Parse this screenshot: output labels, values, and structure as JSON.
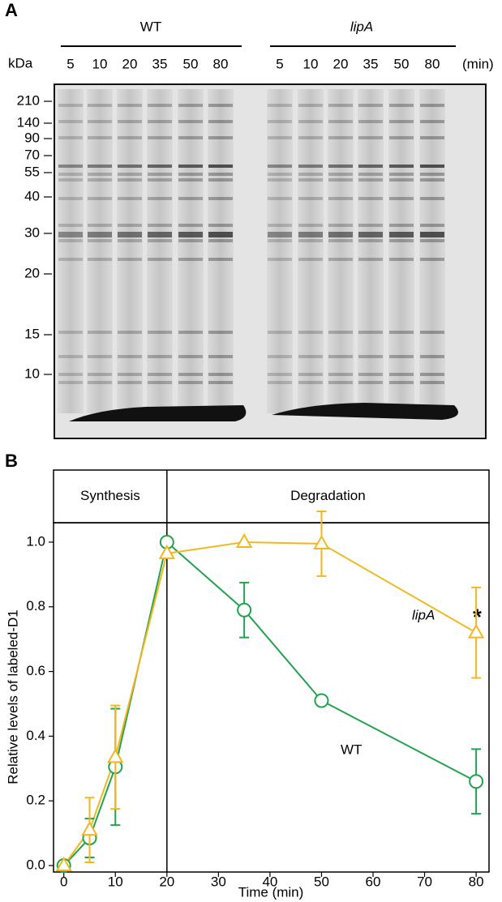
{
  "panel_a": {
    "label": "A",
    "groups": [
      "WT",
      "lipA"
    ],
    "size_unit": "kDa",
    "time_unit": "(min)",
    "wt_times": [
      5,
      10,
      20,
      35,
      50,
      80
    ],
    "lipa_times": [
      5,
      10,
      20,
      35,
      50,
      80
    ],
    "markers": [
      210,
      140,
      90,
      70,
      55,
      40,
      30,
      20,
      15,
      10
    ]
  },
  "chart_data": {
    "type": "line",
    "panel_label": "B",
    "phases": [
      "Synthesis",
      "Degradation"
    ],
    "phase_boundary": 20,
    "xlabel": "Time (min)",
    "ylabel": "Relative levels of labeled-D1",
    "x": [
      0,
      5,
      10,
      20,
      35,
      50,
      80
    ],
    "series": [
      {
        "name": "WT",
        "color": "#23a24d",
        "marker": "circle",
        "values": [
          0,
          0.085,
          0.305,
          1.0,
          0.79,
          0.51,
          0.26
        ],
        "errors": [
          0,
          0.06,
          0.18,
          0,
          0.085,
          0,
          0.1
        ]
      },
      {
        "name": "lipA",
        "color": "#f2b71f",
        "marker": "triangle",
        "values": [
          0,
          0.11,
          0.335,
          0.965,
          1.0,
          0.995,
          0.72
        ],
        "errors": [
          0,
          0.1,
          0.16,
          0,
          0,
          0.1,
          0.14
        ]
      }
    ],
    "significance": "*",
    "xlim": [
      -2,
      82.5
    ],
    "ylim": [
      -0.02,
      1.06
    ],
    "xticks": [
      0,
      10,
      20,
      30,
      40,
      50,
      60,
      70,
      80
    ],
    "yticks": [
      {
        "value": 0,
        "label": "0.0"
      },
      0.2,
      0.4,
      0.6,
      0.8,
      {
        "value": 1,
        "label": "1.0"
      }
    ]
  }
}
